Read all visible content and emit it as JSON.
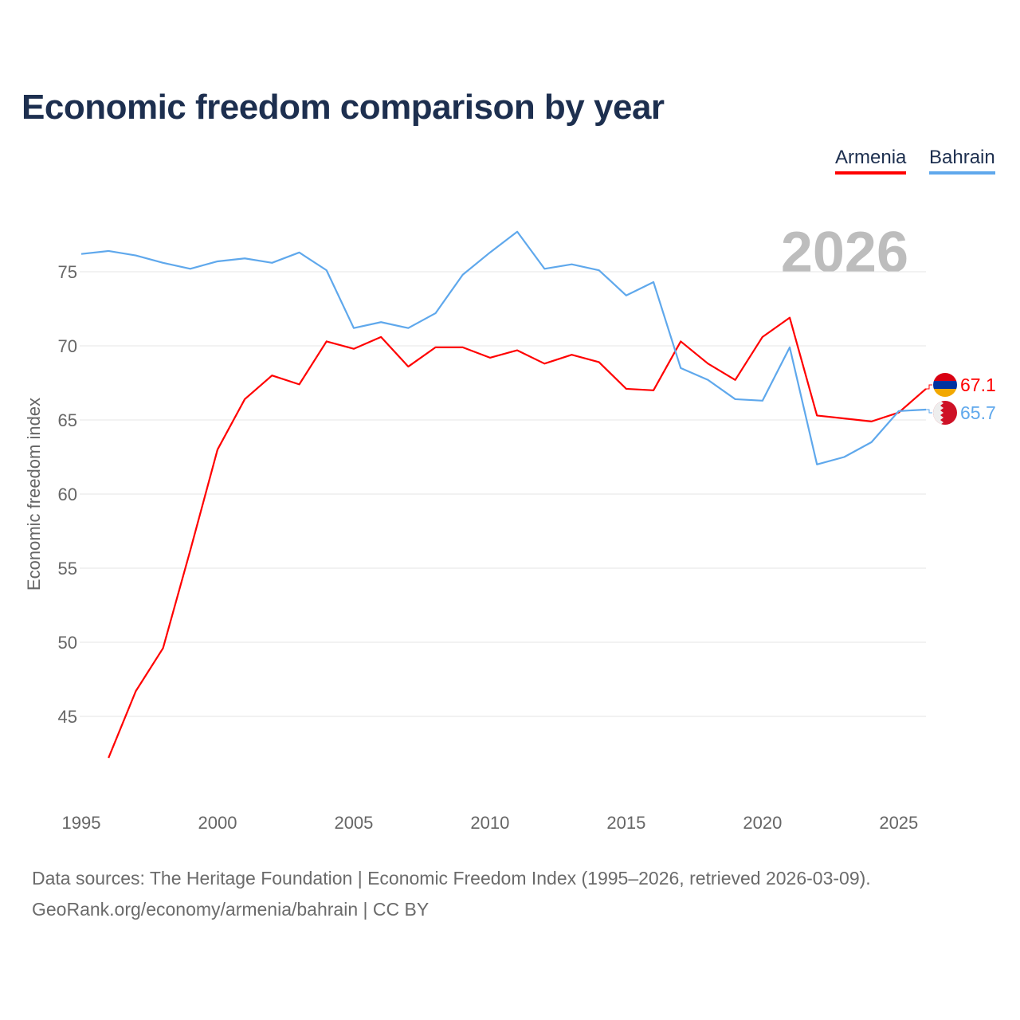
{
  "title": "Economic freedom comparison by year",
  "year_watermark": "2026",
  "footer": {
    "line1": "Data sources: The Heritage Foundation | Economic Freedom Index (1995–2026, retrieved 2026-03-09).",
    "line2": "GeoRank.org/economy/armenia/bahrain | CC BY"
  },
  "chart_data": {
    "type": "line",
    "title": "Economic freedom comparison by year",
    "xlabel": "",
    "ylabel": "Economic freedom index",
    "xlim": [
      1995,
      2026
    ],
    "ylim": [
      40,
      80
    ],
    "yticks": [
      "45",
      "50",
      "55",
      "60",
      "65",
      "70",
      "75"
    ],
    "xticks": [
      "1995",
      "2000",
      "2005",
      "2010",
      "2015",
      "2020",
      "2025"
    ],
    "grid": true,
    "legend_position": "top-right",
    "series": [
      {
        "name": "Armenia",
        "color": "#ff0000",
        "end_label": "67.1",
        "x": [
          1996,
          1997,
          1998,
          1999,
          2000,
          2001,
          2002,
          2003,
          2004,
          2005,
          2006,
          2007,
          2008,
          2009,
          2010,
          2011,
          2012,
          2013,
          2014,
          2015,
          2016,
          2017,
          2018,
          2019,
          2020,
          2021,
          2022,
          2023,
          2024,
          2025,
          2026
        ],
        "values": [
          42.2,
          46.7,
          49.6,
          56.2,
          63.0,
          66.4,
          68.0,
          67.4,
          70.3,
          69.8,
          70.6,
          68.6,
          69.9,
          69.9,
          69.2,
          69.7,
          68.8,
          69.4,
          68.9,
          67.1,
          67.0,
          70.3,
          68.8,
          67.7,
          70.6,
          71.9,
          65.3,
          65.1,
          64.9,
          65.5,
          67.1
        ]
      },
      {
        "name": "Bahrain",
        "color": "#5fa8ec",
        "end_label": "65.7",
        "x": [
          1995,
          1996,
          1997,
          1998,
          1999,
          2000,
          2001,
          2002,
          2003,
          2004,
          2005,
          2006,
          2007,
          2008,
          2009,
          2010,
          2011,
          2012,
          2013,
          2014,
          2015,
          2016,
          2017,
          2018,
          2019,
          2020,
          2021,
          2022,
          2023,
          2024,
          2025,
          2026
        ],
        "values": [
          76.2,
          76.4,
          76.1,
          75.6,
          75.2,
          75.7,
          75.9,
          75.6,
          76.3,
          75.1,
          71.2,
          71.6,
          71.2,
          72.2,
          74.8,
          76.3,
          77.7,
          75.2,
          75.5,
          75.1,
          73.4,
          74.3,
          68.5,
          67.7,
          66.4,
          66.3,
          69.9,
          62.0,
          62.5,
          63.5,
          65.6,
          65.7
        ]
      }
    ]
  }
}
